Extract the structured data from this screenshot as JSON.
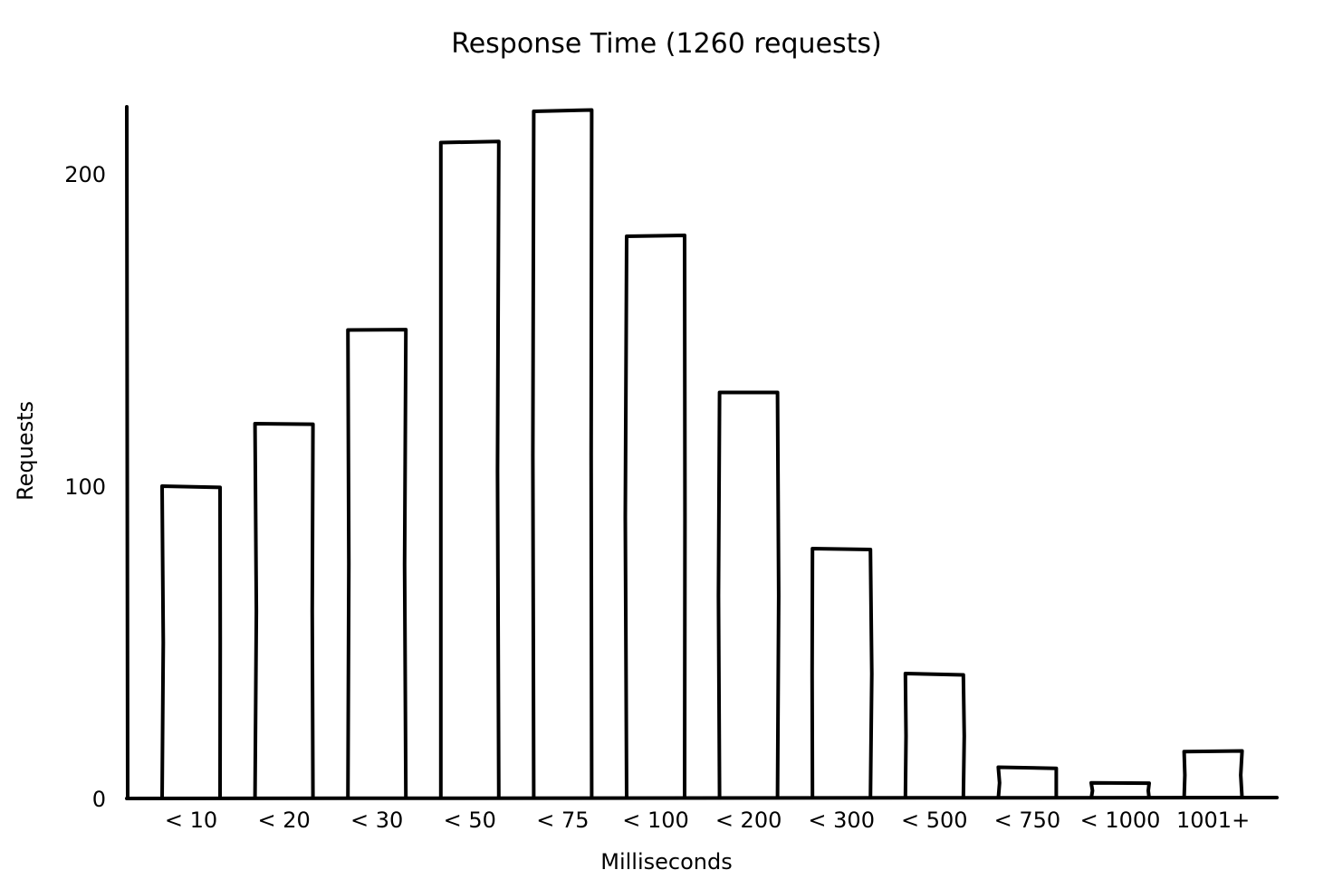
{
  "chart_data": {
    "type": "bar",
    "title": "Response Time (1260 requests)",
    "xlabel": "Milliseconds",
    "ylabel": "Requests",
    "categories": [
      "< 10",
      "< 20",
      "< 30",
      "< 50",
      "< 75",
      "< 100",
      "< 200",
      "< 300",
      "< 500",
      "< 750",
      "< 1000",
      "1001+"
    ],
    "values": [
      100,
      120,
      150,
      210,
      220,
      180,
      130,
      80,
      40,
      10,
      5,
      15
    ],
    "ylim": [
      0,
      222
    ],
    "yticks": [
      0,
      100,
      200
    ],
    "grid": false,
    "style": "hand-drawn (xkcd)",
    "bar_fill": "#ffffff",
    "bar_stroke": "#000000"
  }
}
